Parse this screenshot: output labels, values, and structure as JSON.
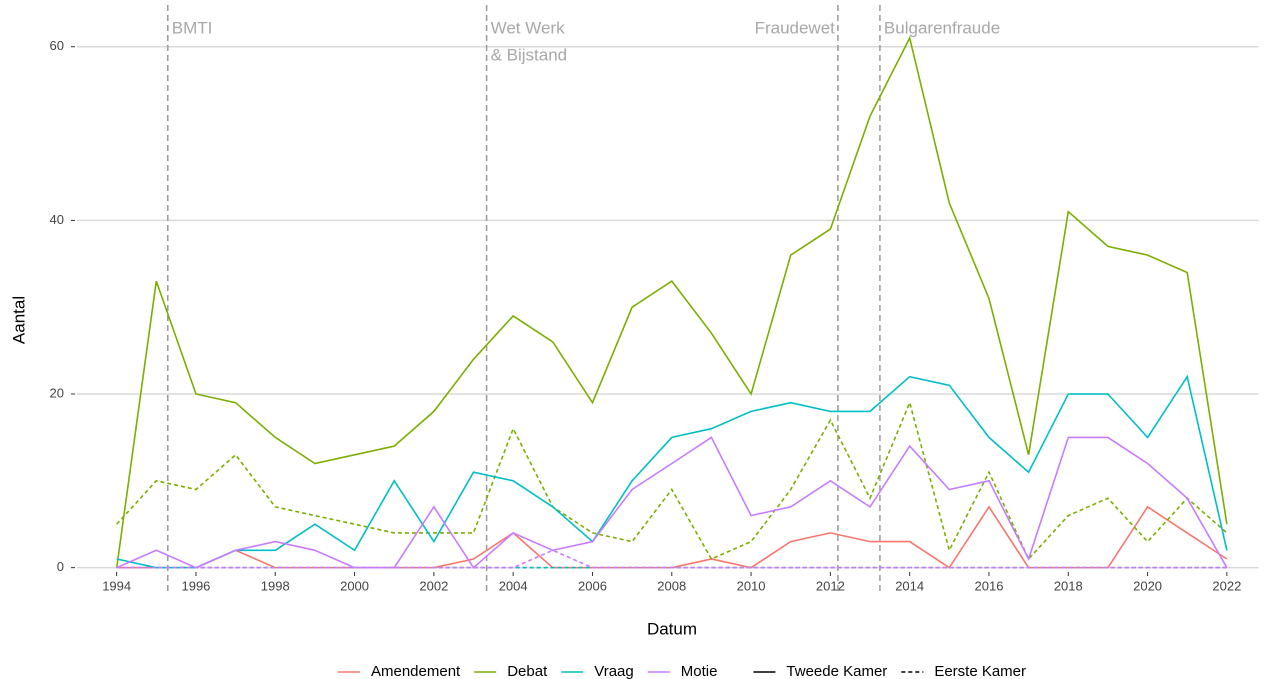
{
  "chart_data": {
    "type": "line",
    "x_label": "Datum",
    "y_label": "Aantal",
    "x": [
      1994,
      1995,
      1996,
      1997,
      1998,
      1999,
      2000,
      2001,
      2002,
      2003,
      2004,
      2005,
      2006,
      2007,
      2008,
      2009,
      2010,
      2011,
      2012,
      2013,
      2014,
      2015,
      2016,
      2017,
      2018,
      2019,
      2020,
      2021,
      2022
    ],
    "series": [
      {
        "name": "Amendement",
        "chamber": "Tweede Kamer",
        "color": "#f8766d",
        "dashed": false,
        "values": [
          0,
          0,
          0,
          2,
          0,
          0,
          0,
          0,
          0,
          1,
          4,
          0,
          0,
          0,
          0,
          1,
          0,
          3,
          4,
          3,
          3,
          0,
          7,
          0,
          0,
          0,
          7,
          4,
          1
        ]
      },
      {
        "name": "Amendement",
        "chamber": "Eerste Kamer",
        "color": "#f8766d",
        "dashed": true,
        "values": [
          0,
          0,
          0,
          0,
          0,
          0,
          0,
          0,
          0,
          0,
          0,
          0,
          0,
          0,
          0,
          0,
          0,
          0,
          0,
          0,
          0,
          0,
          0,
          0,
          0,
          0,
          0,
          0,
          0
        ]
      },
      {
        "name": "Debat",
        "chamber": "Tweede Kamer",
        "color": "#7cae00",
        "dashed": false,
        "values": [
          0,
          33,
          20,
          19,
          15,
          12,
          13,
          14,
          18,
          24,
          29,
          26,
          19,
          30,
          33,
          27,
          20,
          36,
          39,
          52,
          61,
          42,
          31,
          13,
          41,
          37,
          36,
          34,
          5
        ]
      },
      {
        "name": "Debat",
        "chamber": "Eerste Kamer",
        "color": "#7cae00",
        "dashed": true,
        "values": [
          5,
          10,
          9,
          13,
          7,
          6,
          5,
          4,
          4,
          4,
          16,
          7,
          4,
          3,
          9,
          1,
          3,
          9,
          17,
          8,
          19,
          2,
          11,
          1,
          6,
          8,
          3,
          8,
          4
        ]
      },
      {
        "name": "Vraag",
        "chamber": "Tweede Kamer",
        "color": "#00bfc4",
        "dashed": false,
        "values": [
          1,
          0,
          0,
          2,
          2,
          5,
          2,
          10,
          3,
          11,
          10,
          7,
          3,
          10,
          15,
          16,
          18,
          19,
          18,
          18,
          22,
          21,
          15,
          11,
          20,
          20,
          15,
          22,
          2
        ]
      },
      {
        "name": "Vraag",
        "chamber": "Eerste Kamer",
        "color": "#00bfc4",
        "dashed": true,
        "values": [
          0,
          0,
          0,
          0,
          0,
          0,
          0,
          0,
          0,
          0,
          0,
          0,
          0,
          0,
          0,
          0,
          0,
          0,
          0,
          0,
          0,
          0,
          0,
          0,
          0,
          0,
          0,
          0,
          0
        ]
      },
      {
        "name": "Motie",
        "chamber": "Tweede Kamer",
        "color": "#c77cff",
        "dashed": false,
        "values": [
          0,
          2,
          0,
          2,
          3,
          2,
          0,
          0,
          7,
          0,
          4,
          2,
          3,
          9,
          12,
          15,
          6,
          7,
          10,
          7,
          14,
          9,
          10,
          1,
          15,
          15,
          12,
          8,
          0
        ]
      },
      {
        "name": "Motie",
        "chamber": "Eerste Kamer",
        "color": "#c77cff",
        "dashed": true,
        "values": [
          0,
          0,
          0,
          0,
          0,
          0,
          0,
          0,
          0,
          0,
          0,
          2,
          0,
          0,
          0,
          0,
          0,
          0,
          0,
          0,
          0,
          0,
          0,
          0,
          0,
          0,
          0,
          0,
          0
        ]
      }
    ],
    "annotations": [
      {
        "x": 1995.29,
        "label": [
          "BMTI"
        ],
        "align": "right"
      },
      {
        "x": 2003.33,
        "label": [
          "Wet Werk",
          "& Bijstand"
        ],
        "align": "right"
      },
      {
        "x": 2012.19,
        "label": [
          "Fraudewet"
        ],
        "align": "left"
      },
      {
        "x": 2013.25,
        "label": [
          "Bulgarenfraude"
        ],
        "align": "right"
      }
    ],
    "xlim": [
      1993,
      2022.8
    ],
    "xticks": [
      1994,
      1996,
      1998,
      2000,
      2002,
      2004,
      2006,
      2008,
      2010,
      2012,
      2014,
      2016,
      2018,
      2020,
      2022
    ],
    "ylim": [
      -0.5,
      64
    ],
    "yticks": [
      0,
      20,
      40,
      60
    ],
    "grid": true,
    "legend": "bottom"
  }
}
